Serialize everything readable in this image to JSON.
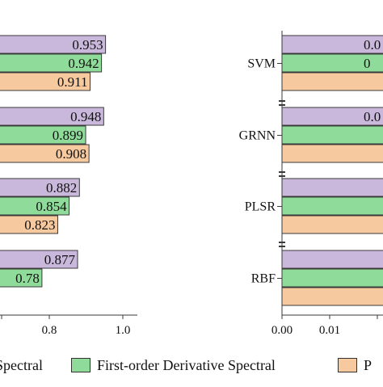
{
  "chart_data": [
    {
      "type": "bar",
      "orientation": "horizontal",
      "categories": [
        "SVM",
        "GRNN",
        "PLSR",
        "RBF"
      ],
      "series": [
        {
          "values": [
            0.953,
            0.948,
            0.882,
            0.877
          ]
        },
        {
          "name": "First-order Derivative Spectral",
          "values": [
            0.942,
            0.899,
            0.854,
            0.78
          ]
        },
        {
          "values": [
            0.911,
            0.908,
            0.823,
            null
          ]
        }
      ],
      "data_labels": [
        [
          "0.953",
          "0.948",
          "0.882",
          "0.877"
        ],
        [
          "0.942",
          "0.899",
          "0.854",
          "0.78"
        ],
        [
          "0.911",
          "0.908",
          "0.823",
          ""
        ]
      ],
      "x_ticks": [
        "0.8",
        "1.0"
      ],
      "xlim": [
        0.55,
        1.0
      ]
    },
    {
      "type": "bar",
      "orientation": "horizontal",
      "categories": [
        "SVM",
        "GRNN",
        "PLSR",
        "RBF"
      ],
      "category_labels": [
        "SVM",
        "GRNN",
        "PLSR",
        "RBF"
      ],
      "x_ticks": [
        "0.00",
        "0.01"
      ],
      "partial_labels": [
        "0.0",
        "0",
        "0.0"
      ]
    }
  ],
  "legend": [
    {
      "label": "Spectral",
      "color": "#c9b8db"
    },
    {
      "label": "First-order Derivative Spectral",
      "color": "#8fdc9a"
    },
    {
      "label": "P",
      "color": "#f7c99e"
    }
  ],
  "colors": {
    "series": [
      "#c9b8db",
      "#8fdc9a",
      "#f7c99e"
    ],
    "stroke": "#3a3a3a"
  }
}
